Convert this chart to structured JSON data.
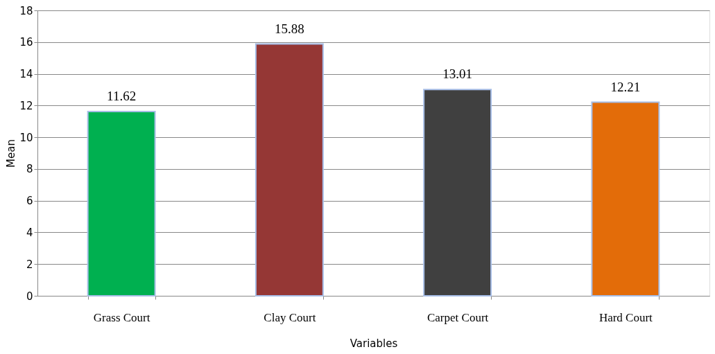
{
  "chart_data": {
    "type": "bar",
    "xlabel": "Variables",
    "ylabel": "Mean",
    "categories": [
      "Grass Court",
      "Clay Court",
      "Carpet Court",
      "Hard Court"
    ],
    "values": [
      11.62,
      15.88,
      13.01,
      12.21
    ],
    "colors": [
      "#00b050",
      "#953735",
      "#404040",
      "#e36c09"
    ],
    "ylim": [
      0,
      18
    ],
    "yticks": [
      0,
      2,
      4,
      6,
      8,
      10,
      12,
      14,
      16,
      18
    ],
    "grid": "y",
    "data_labels": true
  }
}
